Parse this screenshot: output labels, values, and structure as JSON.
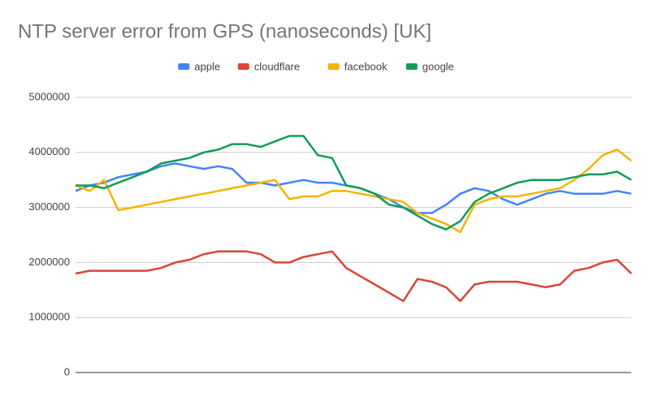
{
  "chart_data": {
    "type": "line",
    "title": "NTP server error from GPS (nanoseconds) [UK]",
    "ylim": [
      0,
      5000000
    ],
    "yticks": [
      0,
      1000000,
      2000000,
      3000000,
      4000000,
      5000000
    ],
    "grid": true,
    "legend": "top",
    "series": [
      {
        "name": "apple",
        "color": "#4285f4",
        "values": [
          3300000,
          3400000,
          3450000,
          3550000,
          3600000,
          3650000,
          3750000,
          3800000,
          3750000,
          3700000,
          3750000,
          3700000,
          3450000,
          3450000,
          3400000,
          3450000,
          3500000,
          3450000,
          3450000,
          3400000,
          3350000,
          3250000,
          3150000,
          3000000,
          2900000,
          2900000,
          3050000,
          3250000,
          3350000,
          3300000,
          3150000,
          3050000,
          3150000,
          3250000,
          3300000,
          3250000,
          3250000,
          3250000,
          3300000,
          3250000
        ]
      },
      {
        "name": "cloudflare",
        "color": "#db4437",
        "values": [
          1800000,
          1850000,
          1850000,
          1850000,
          1850000,
          1850000,
          1900000,
          2000000,
          2050000,
          2150000,
          2200000,
          2200000,
          2200000,
          2150000,
          2000000,
          2000000,
          2100000,
          2150000,
          2200000,
          1900000,
          1750000,
          1600000,
          1450000,
          1300000,
          1700000,
          1650000,
          1550000,
          1300000,
          1600000,
          1650000,
          1650000,
          1650000,
          1600000,
          1550000,
          1600000,
          1850000,
          1900000,
          2000000,
          2050000,
          1800000
        ]
      },
      {
        "name": "facebook",
        "color": "#f4b400",
        "values": [
          3400000,
          3300000,
          3500000,
          2950000,
          3000000,
          3050000,
          3100000,
          3150000,
          3200000,
          3250000,
          3300000,
          3350000,
          3400000,
          3450000,
          3500000,
          3150000,
          3200000,
          3200000,
          3300000,
          3300000,
          3250000,
          3200000,
          3150000,
          3100000,
          2900000,
          2800000,
          2700000,
          2550000,
          3050000,
          3150000,
          3200000,
          3200000,
          3250000,
          3300000,
          3350000,
          3500000,
          3700000,
          3950000,
          4050000,
          3850000
        ]
      },
      {
        "name": "google",
        "color": "#0f9d58",
        "values": [
          3400000,
          3400000,
          3350000,
          3450000,
          3550000,
          3650000,
          3800000,
          3850000,
          3900000,
          4000000,
          4050000,
          4150000,
          4150000,
          4100000,
          4200000,
          4300000,
          4300000,
          3950000,
          3900000,
          3400000,
          3350000,
          3250000,
          3050000,
          3000000,
          2850000,
          2700000,
          2600000,
          2750000,
          3100000,
          3250000,
          3350000,
          3450000,
          3500000,
          3500000,
          3500000,
          3550000,
          3600000,
          3600000,
          3650000,
          3500000
        ]
      }
    ]
  }
}
